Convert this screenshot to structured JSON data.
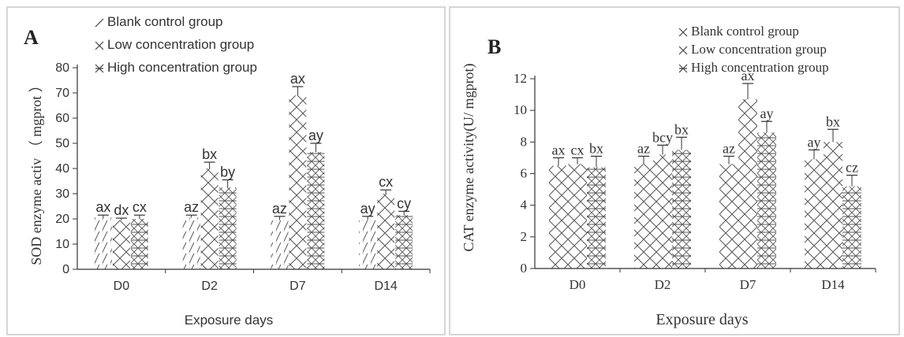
{
  "chart_data": [
    {
      "type": "bar",
      "panel_label": "A",
      "title": "",
      "xlabel": "Exposure days",
      "ylabel": "SOD enzyme activ （ mgprot ）",
      "ylim": [
        0,
        80
      ],
      "yticks": [
        "0",
        "10",
        "20",
        "30",
        "40",
        "50",
        "60",
        "70",
        "80"
      ],
      "categories": [
        "D0",
        "D2",
        "D7",
        "D14"
      ],
      "legend_position": "top",
      "grid": false,
      "series": [
        {
          "name": "Blank control group",
          "pattern": "diagonal",
          "values": [
            20.5,
            20.5,
            19.5,
            19.5
          ],
          "errors": [
            1.0,
            1.0,
            1.5,
            1.5
          ],
          "labels": [
            "ax",
            "az",
            "az",
            "ay"
          ]
        },
        {
          "name": "Low concentration group",
          "pattern": "crosshatch",
          "values": [
            19.5,
            40,
            69,
            30
          ],
          "errors": [
            0.8,
            2.5,
            3.5,
            1.5
          ],
          "labels": [
            "dx",
            "bx",
            "ax",
            "cx"
          ]
        },
        {
          "name": "High concentration group",
          "pattern": "dense",
          "values": [
            20,
            32.5,
            46.5,
            21.5
          ],
          "errors": [
            1.5,
            3.0,
            3.5,
            1.5
          ],
          "labels": [
            "cx",
            "by",
            "ay",
            "cy"
          ]
        }
      ]
    },
    {
      "type": "bar",
      "panel_label": "B",
      "title": "",
      "xlabel": "Exposure days",
      "ylabel": "CAT enzyme activity(U/ mgprot)",
      "ylim": [
        0,
        12
      ],
      "yticks": [
        "0",
        "2",
        "4",
        "6",
        "8",
        "10",
        "12"
      ],
      "categories": [
        "D0",
        "D2",
        "D7",
        "D14"
      ],
      "legend_position": "top-right",
      "grid": false,
      "series": [
        {
          "name": "Blank control group",
          "pattern": "crosshatch",
          "values": [
            6.5,
            6.6,
            6.6,
            6.9
          ],
          "errors": [
            0.5,
            0.5,
            0.5,
            0.6
          ],
          "labels": [
            "ax",
            "az",
            "az",
            "ay"
          ]
        },
        {
          "name": "Low concentration group",
          "pattern": "crosshatch",
          "values": [
            6.6,
            7.2,
            10.7,
            8.0
          ],
          "errors": [
            0.4,
            0.6,
            1.0,
            0.8
          ],
          "labels": [
            "cx",
            "bcy",
            "ax",
            "bx"
          ]
        },
        {
          "name": "High concentration group",
          "pattern": "dense",
          "values": [
            6.4,
            7.5,
            8.6,
            5.2
          ],
          "errors": [
            0.7,
            0.8,
            0.7,
            0.7
          ],
          "labels": [
            "bx",
            "bx",
            "ay",
            "cz"
          ]
        }
      ]
    }
  ]
}
